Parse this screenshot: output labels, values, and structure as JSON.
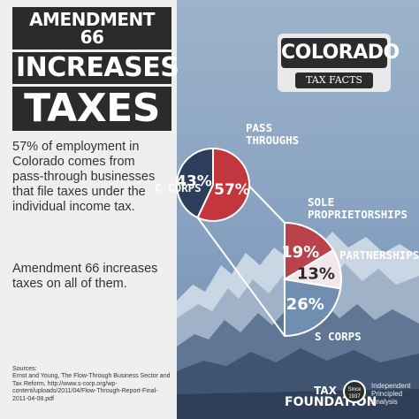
{
  "headline": {
    "line1": "AMENDMENT 66",
    "line2": "INCREASES",
    "line3": "TAXES"
  },
  "body": {
    "paragraph1": "57% of employment in Colorado comes from pass-through businesses that file taxes under the individual income tax.",
    "paragraph2": "Amendment 66 increases taxes on all of them."
  },
  "sources": "Sources:\nErnst and Young, The Flow-Through Business Sector and Tax Reform, http://www.s-corp.org/wp-content/uploads/2011/04/Flow-Through-Report-Final-2011-04-08.pdf",
  "badge": {
    "title": "COLORADO",
    "subtitle": "TAX FACTS"
  },
  "chart_data": [
    {
      "type": "pie",
      "slices": [
        {
          "name": "PASS THROUGHS",
          "value": 57,
          "label": "57%",
          "color": "#c4363d"
        },
        {
          "name": "C CORPS",
          "value": 43,
          "label": "43%",
          "color": "#2c3e5c"
        }
      ],
      "labels": {
        "pass_throughs": "PASS THROUGHS",
        "c_corps": "C CORPS"
      }
    },
    {
      "type": "pie",
      "slices": [
        {
          "name": "SOLE PROPRIETORSHIPS",
          "value": 19,
          "label": "19%",
          "color": "#b9424b"
        },
        {
          "name": "PARTNERSHIPS",
          "value": 13,
          "label": "13%",
          "color": "#f3e8e9"
        },
        {
          "name": "S CORPS",
          "value": 26,
          "label": "26%",
          "color": "#6f8eb0"
        }
      ],
      "labels": {
        "sole_proprietorships": "SOLE PROPRIETORSHIPS",
        "partnerships": "PARTNERSHIPS",
        "s_corps": "S CORPS"
      }
    }
  ],
  "logo": {
    "line1": "TAX",
    "line2": "FOUNDATION",
    "seal": "Since 1937",
    "tagline": "Independent Principled Analysis"
  },
  "colors": {
    "dark": "#2b2b2b",
    "red": "#c4363d",
    "navy": "#2c3e5c",
    "sky": "#86a1c0"
  }
}
